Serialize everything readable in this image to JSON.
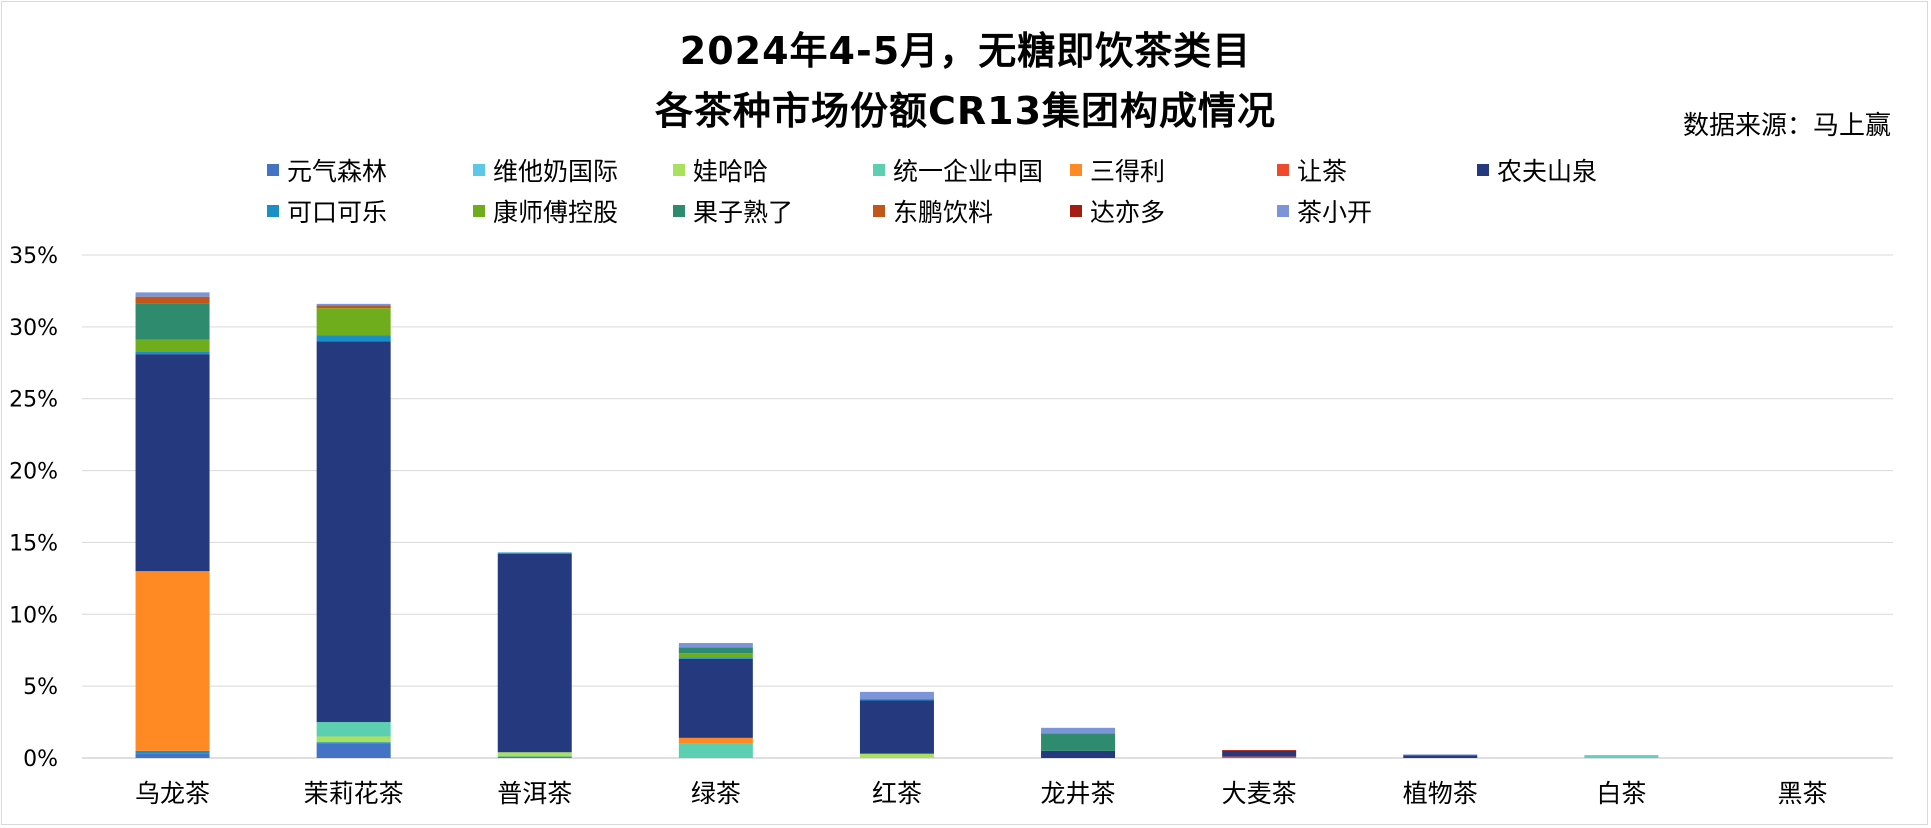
{
  "title_line1": "2024年4-5月，无糖即饮茶类目",
  "title_line2": "各茶种市场份额CR13集团构成情况",
  "source": "数据来源：马上赢",
  "chart_data": {
    "type": "bar",
    "stacked": true,
    "grid": true,
    "legend_position": "top",
    "ylim": [
      0,
      35
    ],
    "yticks": [
      "0%",
      "5%",
      "10%",
      "15%",
      "20%",
      "25%",
      "30%",
      "35%"
    ],
    "categories": [
      "乌龙茶",
      "茉莉花茶",
      "普洱茶",
      "绿茶",
      "红茶",
      "龙井茶",
      "大麦茶",
      "植物茶",
      "白茶",
      "黑茶"
    ],
    "series": [
      {
        "name": "元气森林",
        "color": "#4472C4",
        "values": [
          0.3,
          1.0,
          0.0,
          0.0,
          0.0,
          0.0,
          0.0,
          0.0,
          0.0,
          0.0
        ]
      },
      {
        "name": "可口可乐",
        "color": "#1A8FC5",
        "values": [
          0.2,
          0.1,
          0.1,
          0.0,
          0.0,
          0.0,
          0.0,
          0.0,
          0.0,
          0.0
        ]
      },
      {
        "name": "维他奶国际",
        "color": "#5BC8E8",
        "values": [
          0.0,
          0.0,
          0.0,
          0.0,
          0.0,
          0.0,
          0.0,
          0.0,
          0.1,
          0.0
        ]
      },
      {
        "name": "康师傅控股",
        "color": "#70AD1C",
        "values": [
          0.0,
          0.0,
          0.0,
          0.0,
          0.0,
          0.0,
          0.0,
          0.0,
          0.0,
          0.0
        ]
      },
      {
        "name": "娃哈哈",
        "color": "#A9E05E",
        "values": [
          0.0,
          0.4,
          0.3,
          0.0,
          0.3,
          0.0,
          0.0,
          0.0,
          0.0,
          0.0
        ]
      },
      {
        "name": "果子熟了",
        "color": "#2E8B6E",
        "values": [
          0.0,
          0.0,
          0.0,
          0.0,
          0.0,
          0.0,
          0.0,
          0.0,
          0.0,
          0.0
        ]
      },
      {
        "name": "统一企业中国",
        "color": "#5CCFB0",
        "values": [
          0.0,
          1.0,
          0.0,
          1.0,
          0.0,
          0.0,
          0.0,
          0.0,
          0.1,
          0.0
        ]
      },
      {
        "name": "东鹏饮料",
        "color": "#C0561A",
        "values": [
          0.0,
          0.0,
          0.0,
          0.0,
          0.0,
          0.0,
          0.0,
          0.0,
          0.0,
          0.0
        ]
      },
      {
        "name": "三得利",
        "color": "#FF8A24",
        "values": [
          12.5,
          0.0,
          0.0,
          0.4,
          0.0,
          0.0,
          0.0,
          0.0,
          0.0,
          0.0
        ]
      },
      {
        "name": "达亦多",
        "color": "#A51C12",
        "values": [
          0.0,
          0.0,
          0.0,
          0.0,
          0.0,
          0.0,
          0.0,
          0.0,
          0.0,
          0.0
        ]
      },
      {
        "name": "让茶",
        "color": "#F04A2E",
        "values": [
          0.0,
          0.0,
          0.0,
          0.0,
          0.0,
          0.0,
          0.1,
          0.0,
          0.0,
          0.0
        ]
      },
      {
        "name": "茶小开",
        "color": "#7B95D8",
        "values": [
          0.0,
          0.0,
          0.0,
          0.0,
          0.0,
          0.0,
          0.0,
          0.0,
          0.0,
          0.0
        ]
      },
      {
        "name": "农夫山泉",
        "color": "#253A7E",
        "values": [
          15.1,
          26.5,
          13.8,
          5.5,
          3.7,
          0.5,
          0.4,
          0.2,
          0.0,
          0.0
        ]
      },
      {
        "name": "可口可乐_top",
        "color": "#1A8FC5",
        "values": [
          0.2,
          0.4,
          0.1,
          0.1,
          0.1,
          0.0,
          0.0,
          0.0,
          0.0,
          0.0
        ]
      },
      {
        "name": "康师傅控股_top",
        "color": "#70AD1C",
        "values": [
          0.8,
          1.9,
          0.0,
          0.3,
          0.0,
          0.0,
          0.0,
          0.0,
          0.0,
          0.0
        ]
      },
      {
        "name": "果子熟了_top",
        "color": "#2E8B6E",
        "values": [
          2.5,
          0.0,
          0.0,
          0.4,
          0.0,
          1.2,
          0.0,
          0.0,
          0.0,
          0.0
        ]
      },
      {
        "name": "东鹏饮料_top",
        "color": "#C0561A",
        "values": [
          0.5,
          0.2,
          0.0,
          0.0,
          0.0,
          0.0,
          0.0,
          0.0,
          0.0,
          0.0
        ]
      },
      {
        "name": "达亦多_top",
        "color": "#A51C12",
        "values": [
          0.0,
          0.0,
          0.0,
          0.0,
          0.0,
          0.0,
          0.05,
          0.0,
          0.0,
          0.0
        ]
      },
      {
        "name": "茶小开_top",
        "color": "#7B95D8",
        "values": [
          0.3,
          0.1,
          0.0,
          0.3,
          0.5,
          0.4,
          0.0,
          0.05,
          0.0,
          0.0
        ]
      }
    ],
    "legend": [
      {
        "name": "元气森林",
        "color": "#4472C4"
      },
      {
        "name": "维他奶国际",
        "color": "#5BC8E8"
      },
      {
        "name": "娃哈哈",
        "color": "#A9E05E"
      },
      {
        "name": "统一企业中国",
        "color": "#5CCFB0"
      },
      {
        "name": "三得利",
        "color": "#FF8A24"
      },
      {
        "name": "让茶",
        "color": "#F04A2E"
      },
      {
        "name": "农夫山泉",
        "color": "#253A7E"
      },
      {
        "name": "可口可乐",
        "color": "#1A8FC5"
      },
      {
        "name": "康师傅控股",
        "color": "#70AD1C"
      },
      {
        "name": "果子熟了",
        "color": "#2E8B6E"
      },
      {
        "name": "东鹏饮料",
        "color": "#C0561A"
      },
      {
        "name": "达亦多",
        "color": "#A51C12"
      },
      {
        "name": "茶小开",
        "color": "#7B95D8"
      }
    ]
  }
}
